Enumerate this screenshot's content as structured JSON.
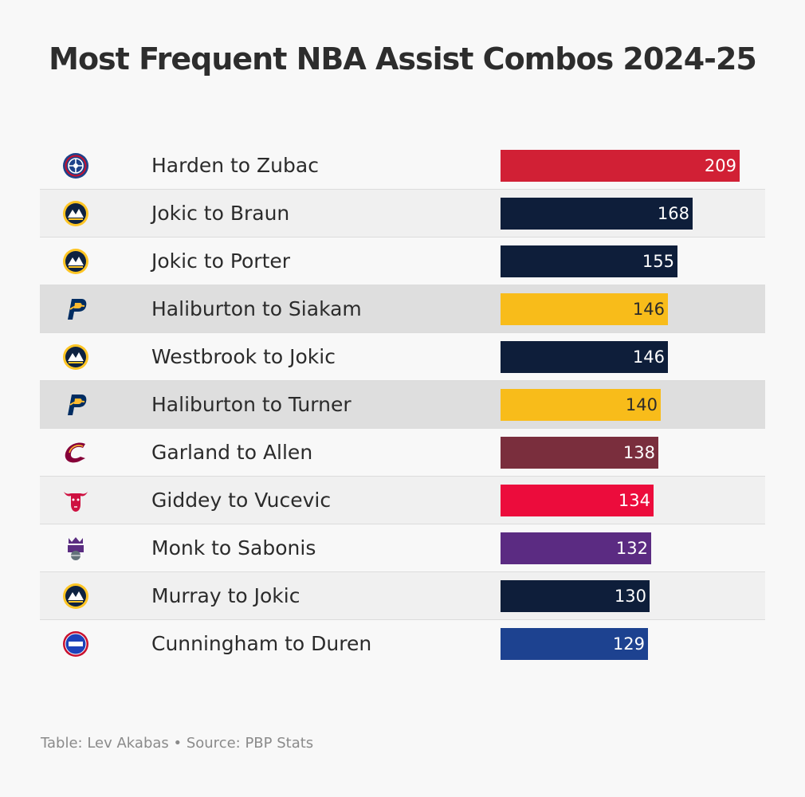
{
  "title": "Most Frequent NBA Assist Combos 2024-25",
  "footer": "Table: Lev Akabas • Source: PBP Stats",
  "chart_data": {
    "type": "bar",
    "orientation": "horizontal",
    "title": "Most Frequent NBA Assist Combos 2024-25",
    "xlim": [
      0,
      209
    ],
    "categories": [
      "Harden to Zubac",
      "Jokic to Braun",
      "Jokic to Porter",
      "Haliburton to Siakam",
      "Westbrook to Jokic",
      "Haliburton to Turner",
      "Garland to Allen",
      "Giddey to Vucevic",
      "Monk to Sabonis",
      "Murray to Jokic",
      "Cunningham to Duren"
    ],
    "values": [
      209,
      168,
      155,
      146,
      146,
      140,
      138,
      134,
      132,
      130,
      129
    ],
    "bar_colors": [
      "#d12035",
      "#0e1e3a",
      "#0e1e3a",
      "#f8bc1a",
      "#0e1e3a",
      "#f8bc1a",
      "#7a2e3d",
      "#ec0c3c",
      "#5b2b82",
      "#0e1e3a",
      "#1d4290"
    ],
    "value_text_colors": [
      "#ffffff",
      "#ffffff",
      "#ffffff",
      "#2b2b2b",
      "#ffffff",
      "#2b2b2b",
      "#ffffff",
      "#ffffff",
      "#ffffff",
      "#ffffff",
      "#ffffff"
    ],
    "row_shades": [
      0,
      1,
      0,
      2,
      0,
      2,
      0,
      1,
      0,
      1,
      0
    ],
    "team_icons": [
      "clippers-logo-icon",
      "nuggets-logo-icon",
      "nuggets-logo-icon",
      "pacers-logo-icon",
      "nuggets-logo-icon",
      "pacers-logo-icon",
      "cavaliers-logo-icon",
      "bulls-logo-icon",
      "kings-logo-icon",
      "nuggets-logo-icon",
      "pistons-logo-icon"
    ]
  }
}
